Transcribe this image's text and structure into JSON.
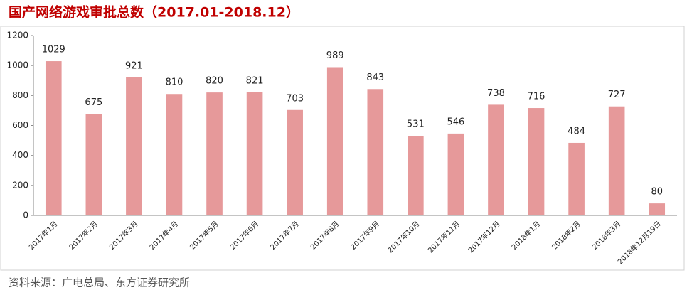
{
  "chart_data": {
    "type": "bar",
    "title": "国产网络游戏审批总数（2017.01-2018.12）",
    "categories": [
      "2017年1月",
      "2017年2月",
      "2017年3月",
      "2017年4月",
      "2017年5月",
      "2017年6月",
      "2017年7月",
      "2017年8月",
      "2017年9月",
      "2017年10月",
      "2017年11月",
      "2017年12月",
      "2018年1月",
      "2018年2月",
      "2018年3月",
      "2018年12月19日"
    ],
    "values": [
      1029,
      675,
      921,
      810,
      820,
      821,
      703,
      989,
      843,
      531,
      546,
      738,
      716,
      484,
      727,
      80
    ],
    "color": "#e6999a",
    "ylim": [
      0,
      1200
    ],
    "yticks": [
      0,
      200,
      400,
      600,
      800,
      1000,
      1200
    ],
    "source": "资料来源：广电总局、东方证券研究所"
  }
}
